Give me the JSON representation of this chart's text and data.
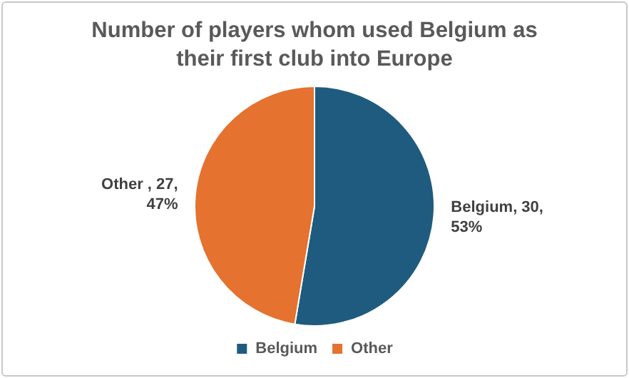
{
  "chart_data": {
    "type": "pie",
    "title": "Number of players whom used Belgium as their first club into Europe",
    "categories": [
      "Belgium",
      "Other"
    ],
    "values": [
      30,
      27
    ],
    "colors": [
      "#1f5b7f",
      "#e5722f"
    ],
    "value_labels": [
      "Belgium, 30, 53%",
      "Other , 27, 47%"
    ],
    "legend": "bottom"
  }
}
